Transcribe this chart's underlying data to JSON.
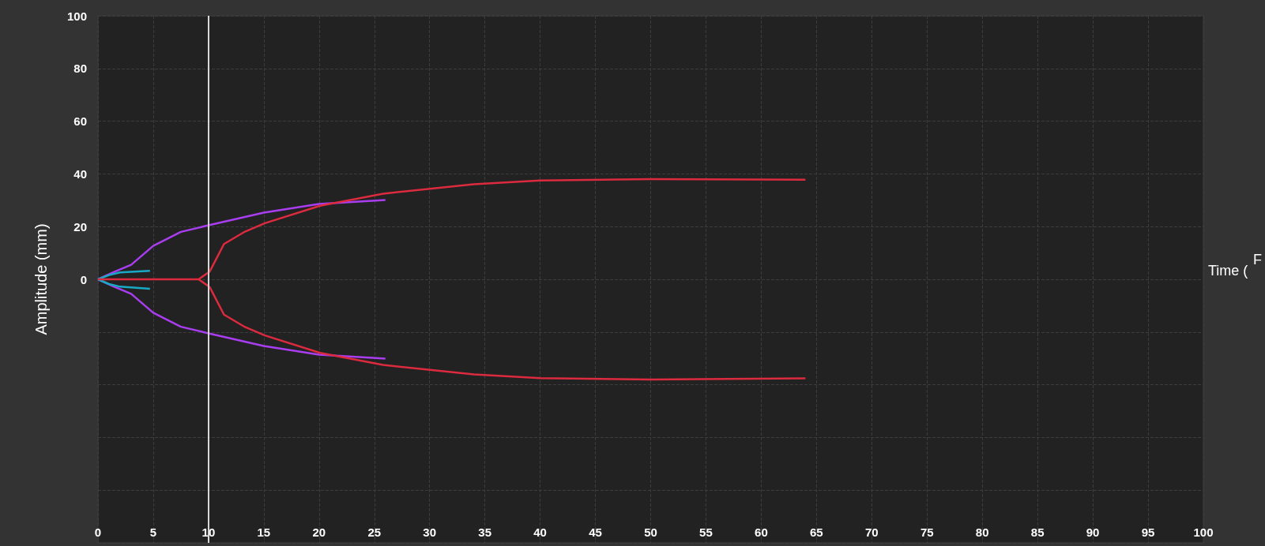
{
  "chart_data": {
    "type": "line",
    "xlabel": "Time (",
    "ylabel": "Amplitude (mm)",
    "annotations": [
      "F"
    ],
    "xlim": [
      0,
      100
    ],
    "xticks": [
      0,
      5,
      10,
      15,
      20,
      25,
      30,
      35,
      40,
      45,
      50,
      55,
      60,
      65,
      70,
      75,
      80,
      85,
      90,
      95,
      100
    ],
    "ylim": [
      -100,
      100
    ],
    "yticks": [
      {
        "value": -100,
        "label": null
      },
      {
        "value": -80,
        "label": null
      },
      {
        "value": -60,
        "label": null
      },
      {
        "value": -40,
        "label": null
      },
      {
        "value": -20,
        "label": null
      },
      0,
      20,
      40,
      60,
      80,
      100
    ],
    "grid": true,
    "ref_lines": [
      {
        "axis": "x",
        "value": 10,
        "color": "#d8d8d8"
      }
    ],
    "series": [
      {
        "color": "#a93ef0",
        "x": [
          0,
          1.5,
          3,
          5,
          7.5,
          10,
          15,
          20,
          26
        ],
        "values": [
          0,
          2.9,
          5.5,
          12.7,
          18,
          20.5,
          25.3,
          28.6,
          30.1
        ]
      },
      {
        "color": "#a93ef0",
        "x": [
          0,
          1.5,
          3,
          5,
          7.5,
          10,
          15,
          20,
          26
        ],
        "values": [
          0,
          -2.9,
          -5.5,
          -12.7,
          -18,
          -20.5,
          -25.3,
          -28.6,
          -30.1
        ]
      },
      {
        "color": "#1aa9c4",
        "x": [
          0,
          1,
          2,
          4.7
        ],
        "values": [
          0,
          1.6,
          2.6,
          3.2
        ]
      },
      {
        "color": "#1aa9c4",
        "x": [
          0,
          1,
          2,
          4.7
        ],
        "values": [
          0,
          -1.8,
          -2.8,
          -3.6
        ]
      },
      {
        "color": "#dc2a3e",
        "x": [
          0,
          9.1,
          10.1,
          11.4,
          13.3,
          15.1,
          20.1,
          25.8,
          34,
          40,
          50,
          64
        ],
        "values": [
          0,
          0,
          2.9,
          13.4,
          18.1,
          21.3,
          27.9,
          32.5,
          36.1,
          37.5,
          38,
          37.8
        ]
      },
      {
        "color": "#dc2a3e",
        "x": [
          9.1,
          10.1,
          11.4,
          13.3,
          15.1,
          20.1,
          25.8,
          34,
          40,
          50,
          64
        ],
        "values": [
          0,
          -2.9,
          -13.4,
          -18.1,
          -21.3,
          -27.9,
          -32.5,
          -36.1,
          -37.5,
          -38,
          -37.6
        ]
      }
    ]
  }
}
